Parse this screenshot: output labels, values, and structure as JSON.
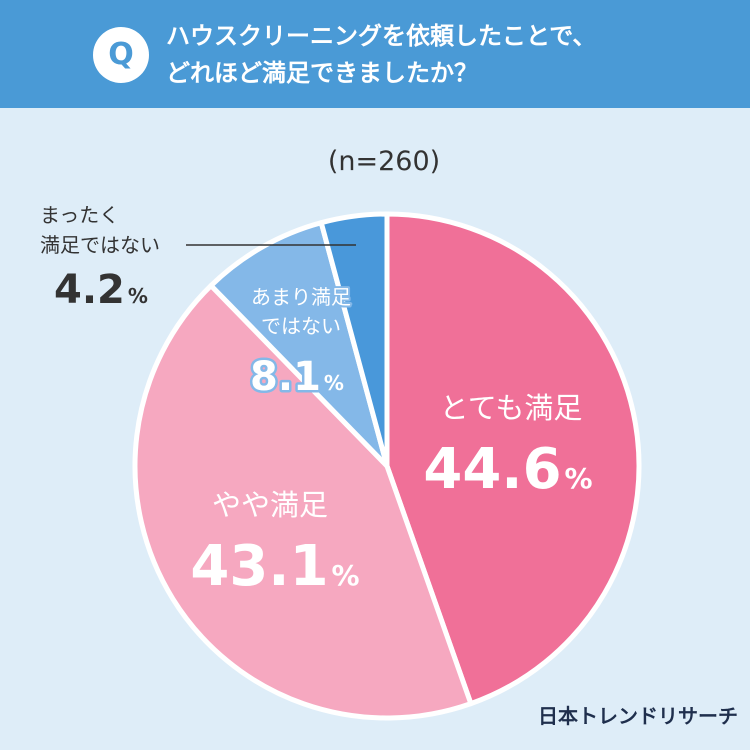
{
  "question": {
    "icon_label": "Q",
    "line1": "ハウスクリーニングを依頼したことで、",
    "line2": "どれほど満足できましたか？"
  },
  "chart_data": {
    "type": "pie",
    "title": "ハウスクリーニングを依頼したことで、どれほど満足できましたか？",
    "sample_size": "(n=260)",
    "start_angle_deg": 0,
    "direction": "clockwise",
    "slices": [
      {
        "name_lines": [
          "とても満足"
        ],
        "value": 44.6,
        "value_label": "44.6",
        "unit": "%",
        "color": "#f07098",
        "label_style": "inside"
      },
      {
        "name_lines": [
          "やや満足"
        ],
        "value": 43.1,
        "value_label": "43.1",
        "unit": "%",
        "color": "#f6a8c0",
        "label_style": "inside"
      },
      {
        "name_lines": [
          "あまり満足",
          "ではない"
        ],
        "value": 8.1,
        "value_label": "8.1",
        "unit": "%",
        "color": "#84b8e8",
        "label_style": "outlined"
      },
      {
        "name_lines": [
          "まったく",
          "満足ではない"
        ],
        "value": 4.2,
        "value_label": "4.2",
        "unit": "%",
        "color": "#4998da",
        "label_style": "outside"
      }
    ]
  },
  "watermark": "日本トレンドリサーチ"
}
